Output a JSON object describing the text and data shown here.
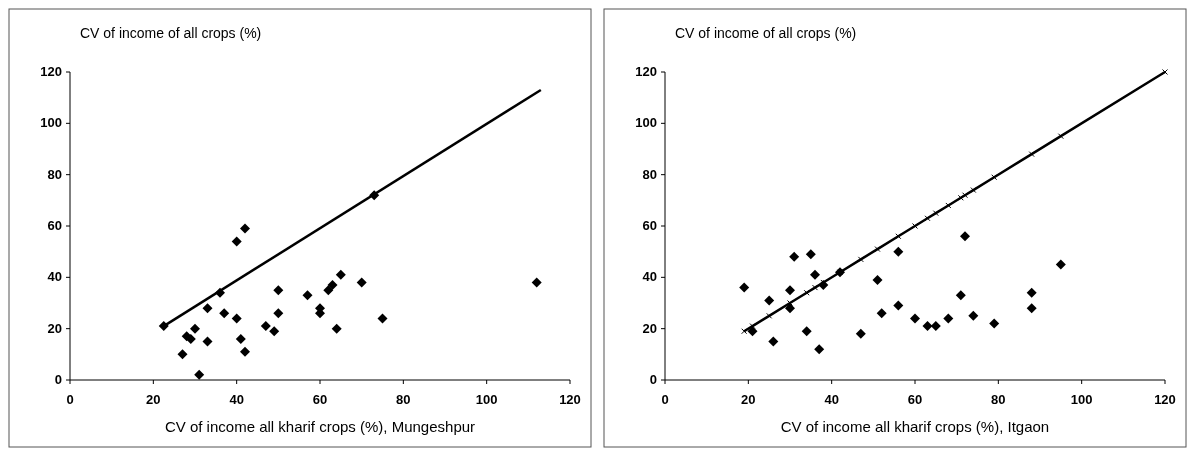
{
  "chart_data": [
    {
      "type": "scatter",
      "xlabel": "CV of income all kharif crops (%), Mungeshpur",
      "ylabel": "CV of income of all crops (%)",
      "xlim": [
        0,
        120
      ],
      "ylim": [
        0,
        120
      ],
      "xticks": [
        0,
        20,
        40,
        60,
        80,
        100,
        120
      ],
      "yticks": [
        0,
        20,
        40,
        60,
        80,
        100,
        120
      ],
      "series": [
        {
          "color": "#000000",
          "marker": "diamond",
          "x": [
            22.5,
            27,
            28,
            29,
            30,
            31,
            33,
            33,
            36,
            37,
            40,
            40,
            41,
            42,
            42,
            47,
            49,
            50,
            50,
            57,
            60,
            60,
            62,
            63,
            64,
            65,
            70,
            73,
            75,
            112
          ],
          "values": [
            21,
            10,
            17,
            16,
            20,
            2,
            28,
            15,
            34,
            26,
            24,
            54,
            16,
            59,
            11,
            21,
            19,
            35,
            26,
            33,
            26,
            28,
            35,
            37,
            20,
            41,
            38,
            72,
            24,
            38
          ]
        },
        {
          "type": "line",
          "color": "#000000",
          "marker": "none",
          "x": [
            22.5,
            113
          ],
          "values": [
            21,
            113
          ]
        }
      ]
    },
    {
      "type": "scatter",
      "xlabel": "CV of income all kharif crops (%), Itgaon",
      "ylabel": "CV of income of all crops (%)",
      "xlim": [
        0,
        120
      ],
      "ylim": [
        0,
        120
      ],
      "xticks": [
        0,
        20,
        40,
        60,
        80,
        100,
        120
      ],
      "yticks": [
        0,
        20,
        40,
        60,
        80,
        100,
        120
      ],
      "series": [
        {
          "color": "#000000",
          "marker": "diamond",
          "x": [
            19,
            21,
            25,
            26,
            30,
            30,
            31,
            34,
            35,
            36,
            37,
            38,
            42,
            47,
            51,
            52,
            56,
            56,
            60,
            63,
            65,
            68,
            71,
            72,
            74,
            79,
            88,
            88,
            95
          ],
          "values": [
            36,
            19,
            31,
            15,
            35,
            28,
            48,
            19,
            49,
            41,
            12,
            37,
            42,
            18,
            39,
            26,
            50,
            29,
            24,
            21,
            21,
            24,
            33,
            56,
            25,
            22,
            34,
            28,
            45
          ]
        },
        {
          "type": "line",
          "color": "#000000",
          "marker": "cross",
          "x": [
            19,
            21,
            25,
            30,
            34,
            36,
            38,
            42,
            47,
            51,
            56,
            60,
            63,
            65,
            68,
            71,
            72,
            74,
            79,
            88,
            95,
            120
          ],
          "values": [
            19,
            21,
            25,
            30,
            34,
            36,
            38,
            42,
            47,
            51,
            56,
            60,
            63,
            65,
            68,
            71,
            72,
            74,
            79,
            88,
            95,
            120
          ]
        }
      ]
    }
  ]
}
